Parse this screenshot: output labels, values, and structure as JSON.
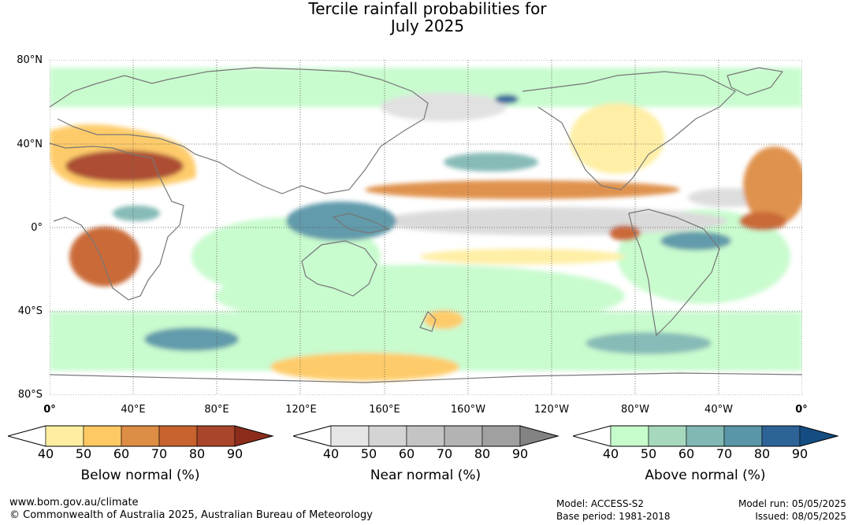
{
  "title": {
    "line1": "Tercile rainfall probabilities for",
    "line2": "July 2025"
  },
  "map": {
    "y_axis_labels": [
      "80°N",
      "40°N",
      "0°",
      "40°S",
      "80°S"
    ],
    "x_axis_labels": [
      "0°",
      "40°E",
      "80°E",
      "120°E",
      "160°E",
      "160°W",
      "120°W",
      "80°W",
      "40°W",
      "0°"
    ],
    "colors": {
      "ocean": "#ffffff",
      "coastline": "#777777",
      "grid": "#555555"
    }
  },
  "colorbars": [
    {
      "name": "below",
      "title": "Below normal (%)",
      "ticks": [
        "40",
        "50",
        "60",
        "70",
        "80",
        "90"
      ],
      "colors": [
        "#ffffff",
        "#ffeea1",
        "#fec964",
        "#de8d45",
        "#c8632f",
        "#a9452a",
        "#8c2d1c"
      ]
    },
    {
      "name": "near",
      "title": "Near normal (%)",
      "ticks": [
        "40",
        "50",
        "60",
        "70",
        "80",
        "90"
      ],
      "colors": [
        "#ffffff",
        "#e6e6e6",
        "#d4d4d4",
        "#c4c4c4",
        "#b3b3b3",
        "#a0a0a0",
        "#838383"
      ]
    },
    {
      "name": "above",
      "title": "Above normal (%)",
      "ticks": [
        "40",
        "50",
        "60",
        "70",
        "80",
        "90"
      ],
      "colors": [
        "#ffffff",
        "#c6fbcc",
        "#a6d8bd",
        "#81b8b4",
        "#5a96a7",
        "#2e6398",
        "#154d82"
      ]
    }
  ],
  "footer": {
    "website": "www.bom.gov.au/climate",
    "copyright": "© Commonwealth of Australia 2025, Australian Bureau of Meteorology",
    "model": "Model: ACCESS-S2",
    "base_period": "Base period: 1981-2018",
    "model_run": "Model run: 05/05/2025",
    "issued": "Issued: 08/05/2025"
  }
}
